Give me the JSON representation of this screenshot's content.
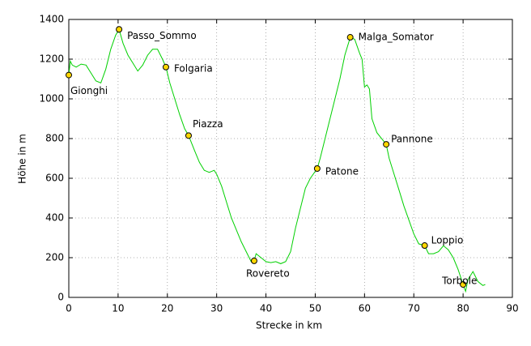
{
  "chart_data": {
    "type": "line",
    "xlabel": "Strecke in km",
    "ylabel": "Höhe in m",
    "xlim": [
      0,
      90
    ],
    "xticks": [
      0,
      10,
      20,
      30,
      40,
      50,
      60,
      70,
      80,
      90
    ],
    "ylim": [
      0,
      1400
    ],
    "yticks": [
      0,
      200,
      400,
      600,
      800,
      1000,
      1200,
      1400
    ],
    "grid": true,
    "color": "#00d000",
    "point_color": "#ffd700",
    "x": [
      0,
      0.3,
      0.7,
      1.5,
      2.5,
      3.5,
      4.5,
      5.5,
      6.5,
      7.5,
      8.5,
      9.5,
      10.2,
      11,
      12,
      13,
      14,
      15,
      16,
      17,
      18,
      19,
      19.7,
      20.5,
      21.5,
      22.5,
      23.5,
      24.3,
      25.5,
      26.5,
      27.5,
      28.5,
      29.5,
      30,
      31,
      32,
      33,
      34,
      35,
      36,
      37,
      37.6,
      38,
      39,
      40,
      41,
      42,
      43,
      44,
      45,
      46,
      47,
      48,
      49,
      50.4,
      51,
      52,
      53,
      54,
      55,
      56,
      57.1,
      58,
      59,
      59.5,
      60,
      60.5,
      61,
      61.5,
      62.5,
      64.4,
      65,
      66,
      67,
      68,
      69,
      70,
      71,
      72.2,
      73,
      74,
      75,
      76,
      77,
      78,
      79,
      80,
      80.5,
      81,
      82,
      83,
      84,
      84.5
    ],
    "values": [
      1120,
      1190,
      1170,
      1160,
      1175,
      1170,
      1130,
      1090,
      1080,
      1150,
      1250,
      1320,
      1350,
      1280,
      1220,
      1180,
      1140,
      1170,
      1220,
      1250,
      1250,
      1200,
      1160,
      1080,
      1000,
      920,
      850,
      815,
      740,
      680,
      640,
      630,
      640,
      620,
      560,
      480,
      400,
      340,
      280,
      230,
      180,
      184,
      220,
      200,
      180,
      175,
      180,
      170,
      180,
      230,
      350,
      450,
      550,
      600,
      649,
      700,
      800,
      900,
      1000,
      1100,
      1220,
      1310,
      1300,
      1230,
      1200,
      1060,
      1070,
      1050,
      900,
      830,
      771,
      700,
      620,
      540,
      460,
      390,
      320,
      270,
      261,
      220,
      220,
      230,
      260,
      240,
      200,
      140,
      65,
      30,
      90,
      130,
      80,
      60,
      65
    ],
    "points": [
      {
        "label": "Gionghi",
        "x": 0,
        "y": 1120
      },
      {
        "label": "Passo_Sommo",
        "x": 10.2,
        "y": 1350
      },
      {
        "label": "Folgaria",
        "x": 19.7,
        "y": 1160
      },
      {
        "label": "Piazza",
        "x": 24.3,
        "y": 815
      },
      {
        "label": "Rovereto",
        "x": 37.6,
        "y": 184
      },
      {
        "label": "Patone",
        "x": 50.4,
        "y": 649
      },
      {
        "label": "Malga_Somator",
        "x": 57.1,
        "y": 1310
      },
      {
        "label": "Pannone",
        "x": 64.4,
        "y": 771
      },
      {
        "label": "Loppio",
        "x": 72.2,
        "y": 261
      },
      {
        "label": "Torbole",
        "x": 80,
        "y": 65
      }
    ]
  }
}
